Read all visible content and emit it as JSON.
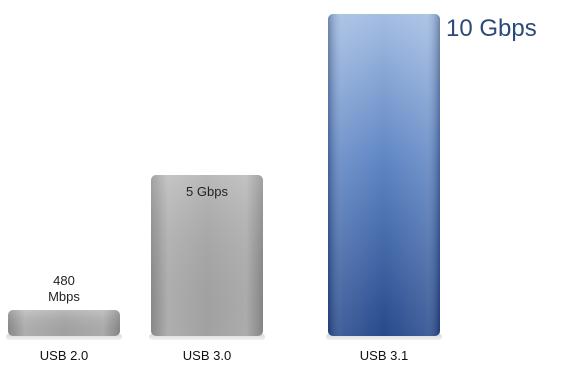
{
  "chart_data": {
    "type": "bar",
    "title": "",
    "xlabel": "",
    "ylabel": "",
    "grid": false,
    "legend": "none",
    "categories": [
      "USB 2.0",
      "USB 3.0",
      "USB 3.1"
    ],
    "values": [
      0.48,
      5,
      10
    ],
    "value_labels": [
      [
        "480",
        "Mbps"
      ],
      [
        "5 Gbps"
      ],
      [
        "10 Gbps"
      ]
    ],
    "ylim": [
      0,
      10
    ],
    "colors": {
      "usb2": "#a9a9a9",
      "usb3": "#a9a9a9",
      "usb31_top": "#9fb8de",
      "usb31_bottom": "#2a4f93"
    }
  }
}
